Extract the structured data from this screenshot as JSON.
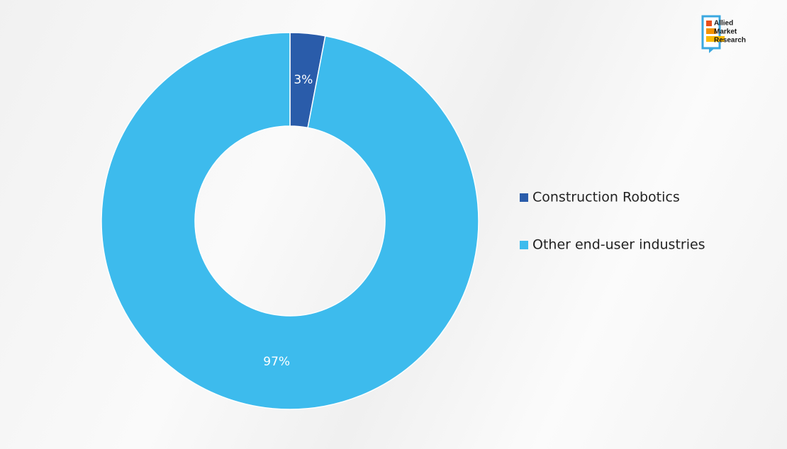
{
  "chart_data": {
    "type": "donut",
    "categories": [
      "Construction Robotics",
      "Other end-user industries"
    ],
    "values": [
      3,
      97
    ],
    "value_labels": [
      "3%",
      "97%"
    ],
    "colors": [
      "#2a5caa",
      "#3dbbed"
    ],
    "legend": "right",
    "brand": [
      "Allied",
      "Market",
      "Research"
    ]
  }
}
